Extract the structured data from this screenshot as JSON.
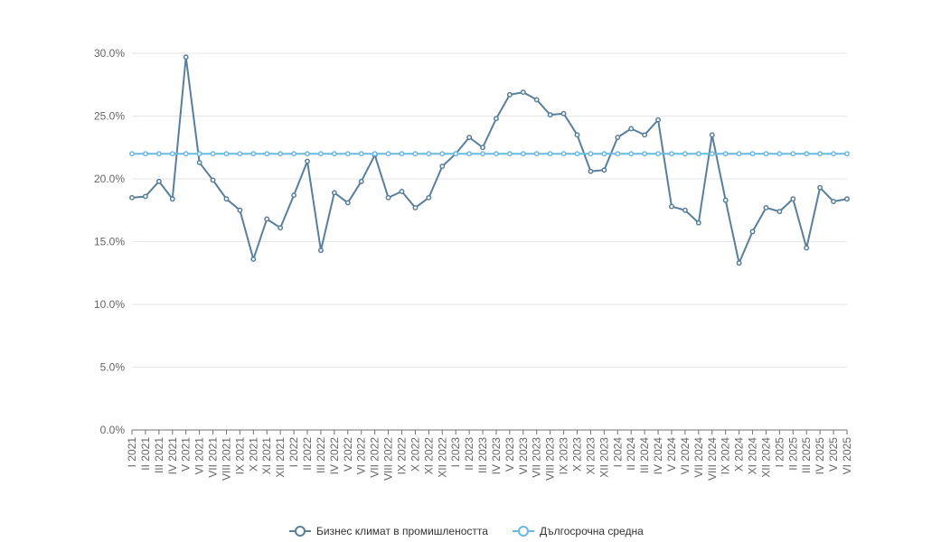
{
  "chart_data": {
    "type": "line",
    "title": "",
    "xlabel": "",
    "ylabel": "",
    "ylim": [
      0,
      30
    ],
    "yticks": [
      "0.0%",
      "5.0%",
      "10.0%",
      "15.0%",
      "20.0%",
      "25.0%",
      "30.0%"
    ],
    "ytick_values": [
      0,
      5,
      10,
      15,
      20,
      25,
      30
    ],
    "grid": true,
    "legend_position": "bottom-center",
    "categories": [
      "I 2021",
      "II 2021",
      "III 2021",
      "IV 2021",
      "V 2021",
      "VI 2021",
      "VII 2021",
      "VIII 2021",
      "IX 2021",
      "X 2021",
      "XI 2021",
      "XII 2021",
      "I 2022",
      "II 2022",
      "III 2022",
      "IV 2022",
      "V 2022",
      "VI 2022",
      "VII 2022",
      "VIII 2022",
      "IX 2022",
      "X 2022",
      "XI 2022",
      "XII 2022",
      "I 2023",
      "II 2023",
      "III 2023",
      "IV 2023",
      "V 2023",
      "VI 2023",
      "VII 2023",
      "VIII 2023",
      "IX 2023",
      "X 2023",
      "XI 2023",
      "XII 2023",
      "I 2024",
      "II 2024",
      "III 2024",
      "IV 2024",
      "V 2024",
      "VI 2024",
      "VII 2024",
      "VIII 2024",
      "IX 2024",
      "X 2024",
      "XI 2024",
      "XII 2024",
      "I 2025",
      "II 2025",
      "III 2025",
      "IV 2025",
      "V 2025",
      "VI 2025"
    ],
    "series": [
      {
        "name": "Бизнес климат в промишлеността",
        "color": "#587f9b",
        "values": [
          18.5,
          18.6,
          19.8,
          18.4,
          29.7,
          21.3,
          19.9,
          18.4,
          17.5,
          13.6,
          16.8,
          16.1,
          18.7,
          21.4,
          14.3,
          18.9,
          18.1,
          19.8,
          21.9,
          18.5,
          19.0,
          17.7,
          18.5,
          21.0,
          22.0,
          23.3,
          22.5,
          24.8,
          26.7,
          26.9,
          26.3,
          25.1,
          25.2,
          23.5,
          20.6,
          20.7,
          23.3,
          24.0,
          23.5,
          24.7,
          17.8,
          17.5,
          16.5,
          23.5,
          18.3,
          13.3,
          15.8,
          17.7,
          17.4,
          18.4,
          14.5,
          19.3,
          18.2,
          18.4
        ]
      },
      {
        "name": "Дългосрочна средна",
        "color": "#6bb8e0",
        "values": [
          22.0,
          22.0,
          22.0,
          22.0,
          22.0,
          22.0,
          22.0,
          22.0,
          22.0,
          22.0,
          22.0,
          22.0,
          22.0,
          22.0,
          22.0,
          22.0,
          22.0,
          22.0,
          22.0,
          22.0,
          22.0,
          22.0,
          22.0,
          22.0,
          22.0,
          22.0,
          22.0,
          22.0,
          22.0,
          22.0,
          22.0,
          22.0,
          22.0,
          22.0,
          22.0,
          22.0,
          22.0,
          22.0,
          22.0,
          22.0,
          22.0,
          22.0,
          22.0,
          22.0,
          22.0,
          22.0,
          22.0,
          22.0,
          22.0,
          22.0,
          22.0,
          22.0,
          22.0,
          22.0
        ]
      }
    ]
  }
}
